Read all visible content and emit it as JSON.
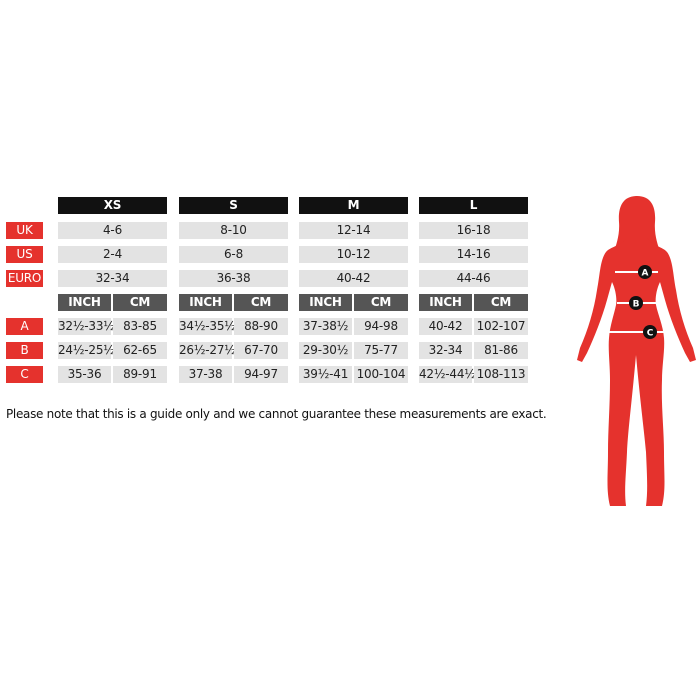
{
  "row_labels": {
    "uk": "UK",
    "us": "US",
    "euro": "EURO",
    "a": "A",
    "b": "B",
    "c": "C"
  },
  "unit_labels": {
    "inch": "INCH",
    "cm": "CM"
  },
  "sizes": [
    {
      "name": "XS",
      "uk": "4-6",
      "us": "2-4",
      "euro": "32-34",
      "a_inch": "32½-33½",
      "a_cm": "83-85",
      "b_inch": "24½-25½",
      "b_cm": "62-65",
      "c_inch": "35-36",
      "c_cm": "89-91"
    },
    {
      "name": "S",
      "uk": "8-10",
      "us": "6-8",
      "euro": "36-38",
      "a_inch": "34½-35½",
      "a_cm": "88-90",
      "b_inch": "26½-27½",
      "b_cm": "67-70",
      "c_inch": "37-38",
      "c_cm": "94-97"
    },
    {
      "name": "M",
      "uk": "12-14",
      "us": "10-12",
      "euro": "40-42",
      "a_inch": "37-38½",
      "a_cm": "94-98",
      "b_inch": "29-30½",
      "b_cm": "75-77",
      "c_inch": "39½-41",
      "c_cm": "100-104"
    },
    {
      "name": "L",
      "uk": "16-18",
      "us": "14-16",
      "euro": "44-46",
      "a_inch": "40-42",
      "a_cm": "102-107",
      "b_inch": "32-34",
      "b_cm": "81-86",
      "c_inch": "42½-44½",
      "c_cm": "108-113"
    }
  ],
  "note": "Please note that this is a guide only and we cannot guarantee these measurements are exact.",
  "figure": {
    "markers": [
      "A",
      "B",
      "C"
    ],
    "icon": "female-silhouette-icon"
  },
  "colors": {
    "accent": "#e5322d",
    "header": "#111111",
    "subheader": "#555555",
    "cell": "#e3e3e3"
  }
}
